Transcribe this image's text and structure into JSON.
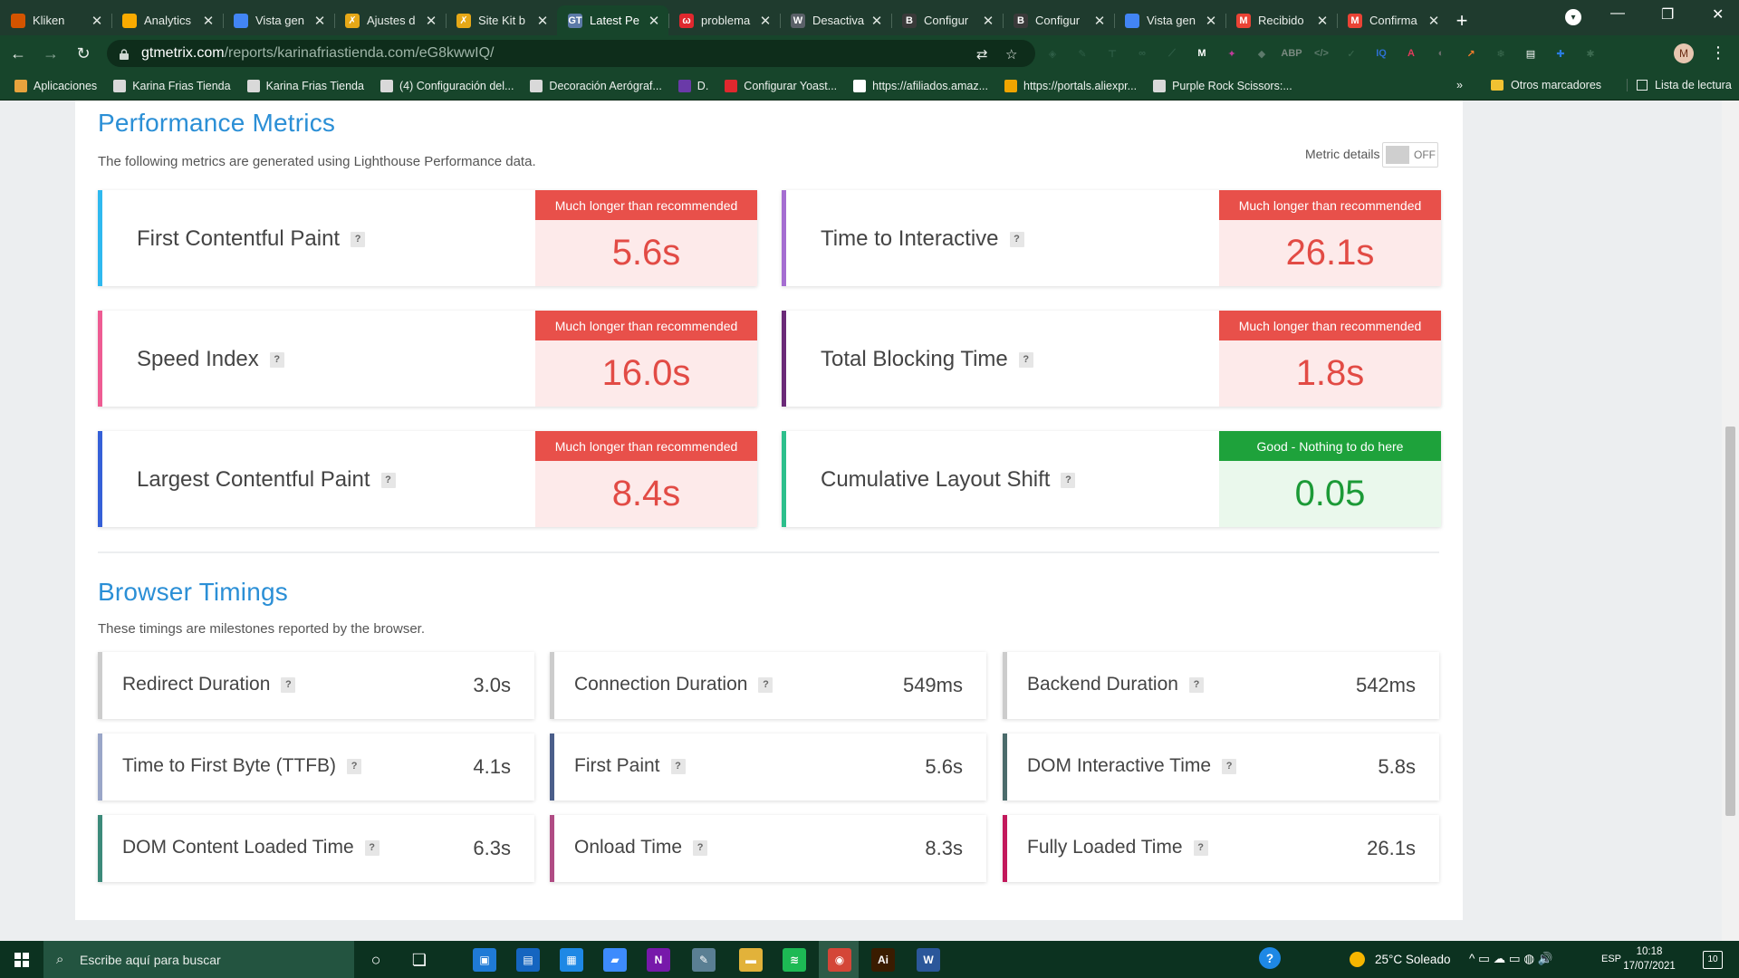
{
  "browser": {
    "tabs": [
      {
        "title": "Kliken",
        "icon_color": "#d35400",
        "glyph": ""
      },
      {
        "title": "Analytics",
        "icon_color": "#f9ab00",
        "glyph": ""
      },
      {
        "title": "Vista gen",
        "icon_color": "#4285f4",
        "glyph": ""
      },
      {
        "title": "Ajustes d",
        "icon_color": "#e6a817",
        "glyph": "✗"
      },
      {
        "title": "Site Kit b",
        "icon_color": "#e6a817",
        "glyph": "✗"
      },
      {
        "title": "Latest Pe",
        "icon_color": "#5c7aa8",
        "glyph": "GT",
        "active": true
      },
      {
        "title": "problema",
        "icon_color": "#e0282e",
        "glyph": "ω"
      },
      {
        "title": "Desactiva",
        "icon_color": "#5a6068",
        "glyph": "W"
      },
      {
        "title": "Configur",
        "icon_color": "#3a3a3a",
        "glyph": "B"
      },
      {
        "title": "Configur",
        "icon_color": "#3a3a3a",
        "glyph": "B"
      },
      {
        "title": "Vista gen",
        "icon_color": "#4285f4",
        "glyph": ""
      },
      {
        "title": "Recibido",
        "icon_color": "#ea4335",
        "glyph": "M"
      },
      {
        "title": "Confirma",
        "icon_color": "#ea4335",
        "glyph": "M"
      }
    ],
    "tab_close_glyph": "✕",
    "new_tab_glyph": "+",
    "tab_menu_glyph": "▾",
    "window_controls": {
      "minimize": "—",
      "restore": "❐",
      "close": "✕"
    },
    "nav": {
      "back": "←",
      "forward": "→",
      "reload": "↻"
    },
    "url": {
      "host": "gtmetrix.com",
      "path": "/reports/karinafriastienda.com/eG8kwwIQ/"
    },
    "omnibox_icons": {
      "translate": "⇄",
      "star": "☆"
    },
    "extensions": [
      {
        "glyph": "◈",
        "color": "#2f5e47"
      },
      {
        "glyph": "✎",
        "color": "#2f5e47"
      },
      {
        "glyph": "⊤",
        "color": "#2f5e47"
      },
      {
        "glyph": "∞",
        "color": "#2f5e47"
      },
      {
        "glyph": "⟋",
        "color": "#2f5e47"
      },
      {
        "glyph": "M",
        "color": "#ffffff"
      },
      {
        "glyph": "✦",
        "color": "#c03b9a"
      },
      {
        "glyph": "◆",
        "color": "#5d7a6b"
      },
      {
        "glyph": "ABP",
        "color": "#7a8a80"
      },
      {
        "glyph": "</>",
        "color": "#5d7a6b"
      },
      {
        "glyph": "✓",
        "color": "#3c6a50"
      },
      {
        "glyph": "IQ",
        "color": "#2d6fd1"
      },
      {
        "glyph": "A",
        "color": "#e23b5c"
      },
      {
        "glyph": "◐",
        "color": "#6e6e6e"
      },
      {
        "glyph": "↗",
        "color": "#ff7f2a"
      },
      {
        "glyph": "❄",
        "color": "#3c6a50"
      },
      {
        "glyph": "▤",
        "color": "#ffffff"
      },
      {
        "glyph": "✚",
        "color": "#2a7de1"
      },
      {
        "glyph": "✱",
        "color": "#3c6a50"
      }
    ],
    "profile_initial": "M",
    "menu_glyph": "⋮",
    "bookmarks": [
      {
        "label": "Aplicaciones",
        "color": "#e8a33d"
      },
      {
        "label": "Karina Frias Tienda",
        "color": "#d9d9d9"
      },
      {
        "label": "Karina Frias Tienda",
        "color": "#d9d9d9"
      },
      {
        "label": "(4) Configuración del...",
        "color": "#d9d9d9"
      },
      {
        "label": "Decoración Aerógraf...",
        "color": "#d9d9d9"
      },
      {
        "label": "D.",
        "color": "#6a3aa8"
      },
      {
        "label": "Configurar Yoast...",
        "color": "#e0282e"
      },
      {
        "label": "https://afiliados.amaz...",
        "color": "#ffffff"
      },
      {
        "label": "https://portals.aliexpr...",
        "color": "#f0a500"
      },
      {
        "label": "Purple Rock Scissors:...",
        "color": "#d9d9d9"
      }
    ],
    "bookmarks_more": "»",
    "bookmarks_other": "Otros marcadores",
    "reading_list": "Lista de lectura"
  },
  "performance": {
    "title": "Performance Metrics",
    "subtitle": "The following metrics are generated using Lighthouse Performance data.",
    "metric_details_label": "Metric details",
    "toggle_state": "OFF",
    "help_glyph": "?",
    "metrics": [
      {
        "label": "First Contentful Paint",
        "badge": "Much longer than recommended",
        "value": "5.6s",
        "status": "bad",
        "accent": "#2fb9ef"
      },
      {
        "label": "Time to Interactive",
        "badge": "Much longer than recommended",
        "value": "26.1s",
        "status": "bad",
        "accent": "#a56dd1"
      },
      {
        "label": "Speed Index",
        "badge": "Much longer than recommended",
        "value": "16.0s",
        "status": "bad",
        "accent": "#ee5c93"
      },
      {
        "label": "Total Blocking Time",
        "badge": "Much longer than recommended",
        "value": "1.8s",
        "status": "bad",
        "accent": "#6b2a78"
      },
      {
        "label": "Largest Contentful Paint",
        "badge": "Much longer than recommended",
        "value": "8.4s",
        "status": "bad",
        "accent": "#3560d8"
      },
      {
        "label": "Cumulative Layout Shift",
        "badge": "Good - Nothing to do here",
        "value": "0.05",
        "status": "good",
        "accent": "#2dbf8c"
      }
    ]
  },
  "timings": {
    "title": "Browser Timings",
    "subtitle": "These timings are milestones reported by the browser.",
    "help_glyph": "?",
    "items": [
      {
        "label": "Redirect Duration",
        "value": "3.0s",
        "accent": "#cccccc"
      },
      {
        "label": "Connection Duration",
        "value": "549ms",
        "accent": "#cccccc"
      },
      {
        "label": "Backend Duration",
        "value": "542ms",
        "accent": "#cccccc"
      },
      {
        "label": "Time to First Byte (TTFB)",
        "value": "4.1s",
        "accent": "#9aa6c8"
      },
      {
        "label": "First Paint",
        "value": "5.6s",
        "accent": "#4b5e8a"
      },
      {
        "label": "DOM Interactive Time",
        "value": "5.8s",
        "accent": "#4b6b6b"
      },
      {
        "label": "DOM Content Loaded Time",
        "value": "6.3s",
        "accent": "#3c8a7a"
      },
      {
        "label": "Onload Time",
        "value": "8.3s",
        "accent": "#b04c84"
      },
      {
        "label": "Fully Loaded Time",
        "value": "26.1s",
        "accent": "#c2185b"
      }
    ]
  },
  "taskbar": {
    "search_placeholder": "Escribe aquí para buscar",
    "search_glyph": "⌕",
    "apps": [
      {
        "name": "cortana",
        "glyph": "○",
        "color": "transparent"
      },
      {
        "name": "task-view",
        "glyph": "❏",
        "color": "transparent"
      },
      {
        "name": "app-blue",
        "glyph": "▣",
        "color": "#1f7ad6"
      },
      {
        "name": "store",
        "glyph": "▤",
        "color": "#1565c0"
      },
      {
        "name": "calendar",
        "glyph": "▦",
        "color": "#1e88e5"
      },
      {
        "name": "files",
        "glyph": "▰",
        "color": "#3d8bfd"
      },
      {
        "name": "onenote",
        "glyph": "N",
        "color": "#7719aa"
      },
      {
        "name": "pen",
        "glyph": "✎",
        "color": "#5a7f93"
      },
      {
        "name": "explorer",
        "glyph": "▬",
        "color": "#e2b23a"
      },
      {
        "name": "spotify",
        "glyph": "≋",
        "color": "#1db954"
      },
      {
        "name": "chrome",
        "glyph": "◉",
        "color": "#d44638"
      },
      {
        "name": "illustrator",
        "glyph": "Ai",
        "color": "#3a1c00"
      },
      {
        "name": "word",
        "glyph": "W",
        "color": "#2b579a"
      }
    ],
    "help_glyph": "?",
    "weather": "25°C  Soleado",
    "tray_icons": "^  ▭  ☁  ▭  ◍  🔊",
    "language": "ESP",
    "time": "10:18",
    "date": "17/07/2021",
    "notifications": "10"
  }
}
